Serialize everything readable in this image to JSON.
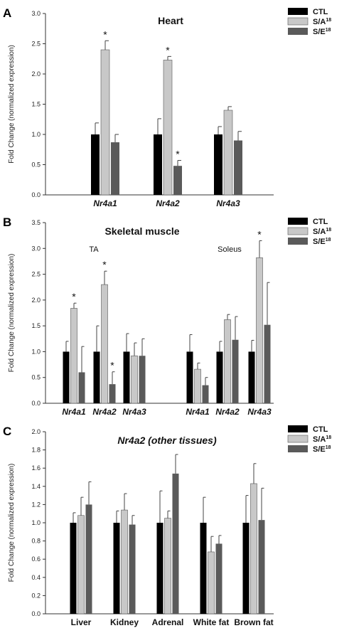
{
  "colors": {
    "CTL": "#000000",
    "SA": "#c8c8c8",
    "SE": "#5a5a5a"
  },
  "legend": [
    {
      "label": "CTL",
      "sup": ""
    },
    {
      "label": "S/A",
      "sup": "18"
    },
    {
      "label": "S/E",
      "sup": "18"
    }
  ],
  "chart_data": [
    {
      "panel": "A",
      "type": "bar",
      "title": "Heart",
      "ylabel": "Fold Change (normalized expression)",
      "xlabel": "",
      "ylim": [
        0,
        3.0
      ],
      "yticks": [
        "0.0",
        "0.5",
        "1.0",
        "1.5",
        "2.0",
        "2.5",
        "3.0"
      ],
      "legend_position": "top-right",
      "categories": [
        "Nr4a1",
        "Nr4a2",
        "Nr4a3"
      ],
      "category_italic": true,
      "series": [
        {
          "name": "CTL",
          "values": [
            1.0,
            1.0,
            1.0
          ],
          "errors": [
            0.19,
            0.26,
            0.13
          ]
        },
        {
          "name": "S/A18",
          "values": [
            2.4,
            2.23,
            1.4
          ],
          "errors": [
            0.15,
            0.06,
            0.06
          ]
        },
        {
          "name": "S/E18",
          "values": [
            0.87,
            0.48,
            0.9
          ],
          "errors": [
            0.13,
            0.09,
            0.15
          ]
        }
      ],
      "significant": [
        [
          1,
          0
        ],
        [
          1,
          1
        ],
        [
          2,
          1
        ]
      ],
      "star": "*"
    },
    {
      "panel": "B",
      "type": "bar",
      "title": "Skeletal muscle",
      "ylabel": "Fold Change (normalized expression)",
      "xlabel": "",
      "ylim": [
        0,
        3.5
      ],
      "yticks": [
        "0.0",
        "0.5",
        "1.0",
        "1.5",
        "2.0",
        "2.5",
        "3.0",
        "3.5"
      ],
      "legend_position": "top-right",
      "groups": [
        "TA",
        "Soleus"
      ],
      "categories": [
        "Nr4a1",
        "Nr4a2",
        "Nr4a3",
        "Nr4a1",
        "Nr4a2",
        "Nr4a3"
      ],
      "category_italic": true,
      "series": [
        {
          "name": "CTL",
          "values": [
            1.0,
            1.0,
            1.0,
            1.0,
            1.0,
            1.0
          ],
          "errors": [
            0.2,
            0.5,
            0.35,
            0.33,
            0.2,
            0.22
          ]
        },
        {
          "name": "S/A18",
          "values": [
            1.84,
            2.3,
            0.92,
            0.66,
            1.62,
            2.82
          ],
          "errors": [
            0.1,
            0.26,
            0.25,
            0.12,
            0.1,
            0.33
          ]
        },
        {
          "name": "S/E18",
          "values": [
            0.6,
            0.37,
            0.92,
            0.35,
            1.23,
            1.52
          ],
          "errors": [
            0.5,
            0.24,
            0.33,
            0.15,
            0.45,
            0.82
          ]
        }
      ],
      "significant": [
        [
          1,
          0
        ],
        [
          1,
          1
        ],
        [
          2,
          1
        ],
        [
          1,
          5
        ]
      ],
      "star": "*"
    },
    {
      "panel": "C",
      "type": "bar",
      "title": "Nr4a2 (other tissues)",
      "ylabel": "Fold Change (normalized expression)",
      "xlabel": "",
      "ylim": [
        0,
        2.0
      ],
      "yticks": [
        "0.0",
        "0.2",
        "0.4",
        "0.6",
        "0.8",
        "1.0",
        "1.2",
        "1.4",
        "1.6",
        "1.8",
        "2.0"
      ],
      "legend_position": "top-right",
      "categories": [
        "Liver",
        "Kidney",
        "Adrenal",
        "White fat",
        "Brown fat"
      ],
      "category_italic": false,
      "series": [
        {
          "name": "CTL",
          "values": [
            1.0,
            1.0,
            1.0,
            1.0,
            1.0
          ],
          "errors": [
            0.11,
            0.13,
            0.35,
            0.28,
            0.3
          ]
        },
        {
          "name": "S/A18",
          "values": [
            1.08,
            1.14,
            1.05,
            0.68,
            1.43
          ],
          "errors": [
            0.2,
            0.18,
            0.08,
            0.17,
            0.22
          ]
        },
        {
          "name": "S/E18",
          "values": [
            1.2,
            0.98,
            1.54,
            0.77,
            1.03
          ],
          "errors": [
            0.25,
            0.1,
            0.21,
            0.09,
            0.35
          ]
        }
      ],
      "significant": [],
      "star": "*"
    }
  ]
}
